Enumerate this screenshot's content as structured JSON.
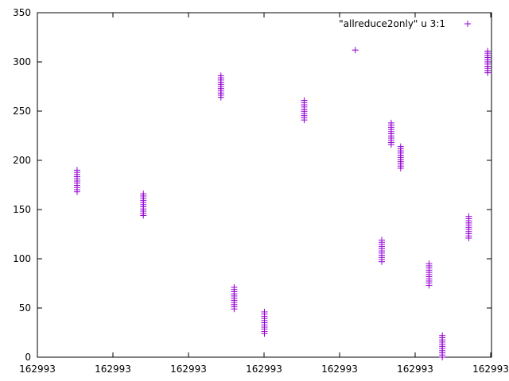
{
  "chart_data": {
    "type": "scatter",
    "title": "",
    "xlabel": "",
    "ylabel": "",
    "xlim": [
      0,
      12
    ],
    "ylim": [
      0,
      350
    ],
    "x_tick_labels": [
      "162993",
      "162993",
      "162993",
      "162993",
      "162993",
      "162993",
      "162993"
    ],
    "y_ticks": [
      0,
      50,
      100,
      150,
      200,
      250,
      300,
      350
    ],
    "grid": false,
    "legend_position": "top-right",
    "marker": "plus",
    "series": [
      {
        "name": "\"allreduce2only\" u 3:1",
        "color": "#9400d3",
        "clusters": [
          {
            "x": 1.05,
            "y_min": 168,
            "y_max": 191
          },
          {
            "x": 2.8,
            "y_min": 144,
            "y_max": 166
          },
          {
            "x": 4.85,
            "y_min": 264,
            "y_max": 287
          },
          {
            "x": 5.2,
            "y_min": 49,
            "y_max": 71
          },
          {
            "x": 6.0,
            "y_min": 24,
            "y_max": 47
          },
          {
            "x": 7.05,
            "y_min": 241,
            "y_max": 262
          },
          {
            "x": 8.4,
            "y_min": 312,
            "y_max": 314
          },
          {
            "x": 9.1,
            "y_min": 97,
            "y_max": 119
          },
          {
            "x": 9.35,
            "y_min": 216,
            "y_max": 238
          },
          {
            "x": 9.6,
            "y_min": 192,
            "y_max": 214
          },
          {
            "x": 10.35,
            "y_min": 73,
            "y_max": 95
          },
          {
            "x": 10.7,
            "y_min": 0,
            "y_max": 22
          },
          {
            "x": 11.4,
            "y_min": 121,
            "y_max": 143
          },
          {
            "x": 11.9,
            "y_min": 289,
            "y_max": 311
          }
        ]
      }
    ]
  }
}
